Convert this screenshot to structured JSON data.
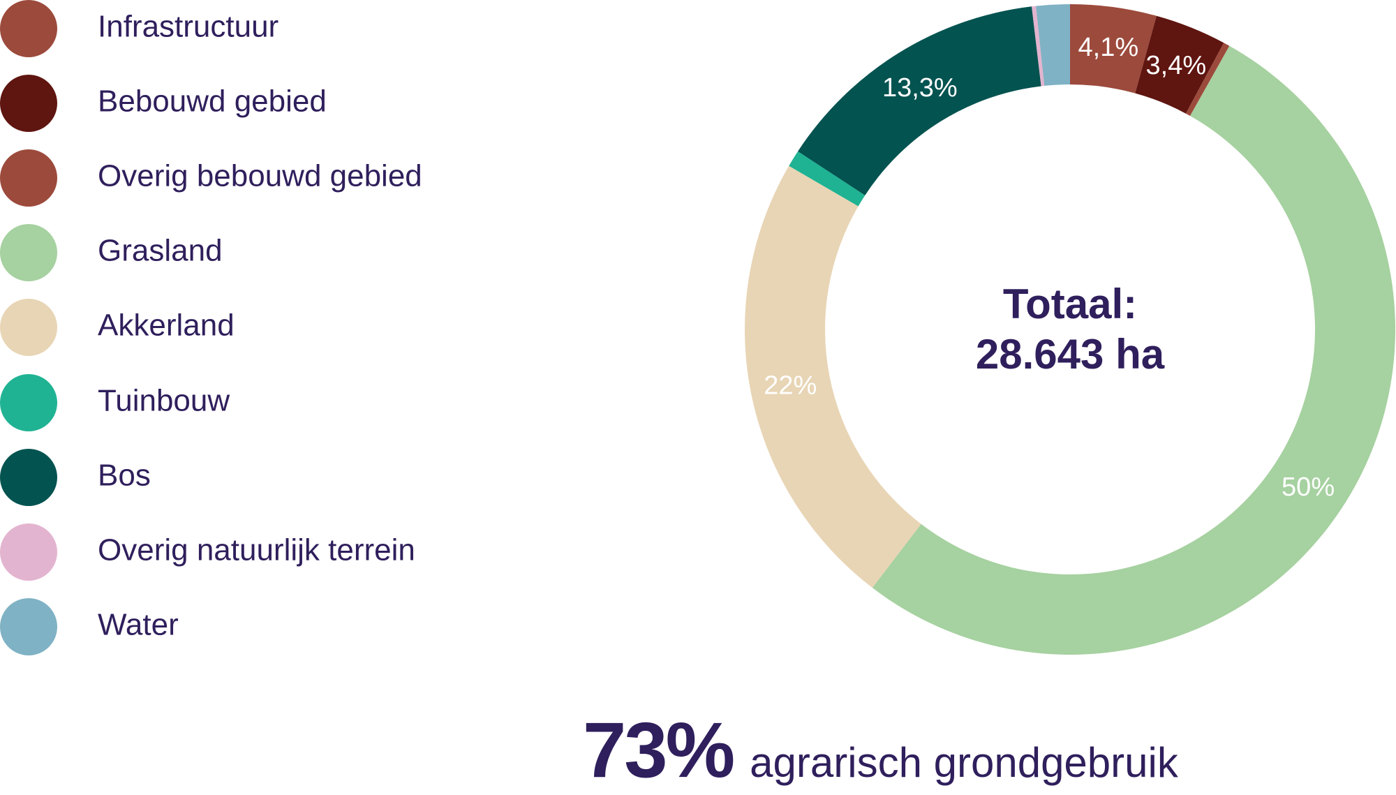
{
  "chart_data": {
    "type": "pie",
    "donut": true,
    "start": "top, clockwise",
    "legend_placement": "left",
    "series": [
      {
        "name": "Infrastructuur",
        "value": 4.1,
        "label": "4,1%",
        "color": "#9c4a3c"
      },
      {
        "name": "Bebouwd gebied",
        "value": 3.4,
        "label": "3,4%",
        "color": "#5f1510"
      },
      {
        "name": "Overig bebouwd gebied",
        "value": 0.3,
        "label": "",
        "color": "#9c4a3c"
      },
      {
        "name": "Grasland",
        "value": 50,
        "label": "50%",
        "color": "#a6d1a0"
      },
      {
        "name": "Akkerland",
        "value": 22,
        "label": "22%",
        "color": "#e8d5b5"
      },
      {
        "name": "Tuinbouw",
        "value": 0.8,
        "label": "",
        "color": "#1fb393"
      },
      {
        "name": "Bos",
        "value": 13.3,
        "label": "13,3%",
        "color": "#035350"
      },
      {
        "name": "Overig natuurlijk terrein",
        "value": 0.2,
        "label": "",
        "color": "#e3b4cf"
      },
      {
        "name": "Water",
        "value": 1.6,
        "label": "",
        "color": "#7fb2c4"
      }
    ],
    "center_text": {
      "line1": "Totaal:",
      "line2": "28.643 ha"
    }
  },
  "footer": {
    "big": "73%",
    "text": "agrarisch grondgebruik"
  },
  "colors": {
    "text": "#2f1f5c",
    "label": "#ffffff"
  }
}
